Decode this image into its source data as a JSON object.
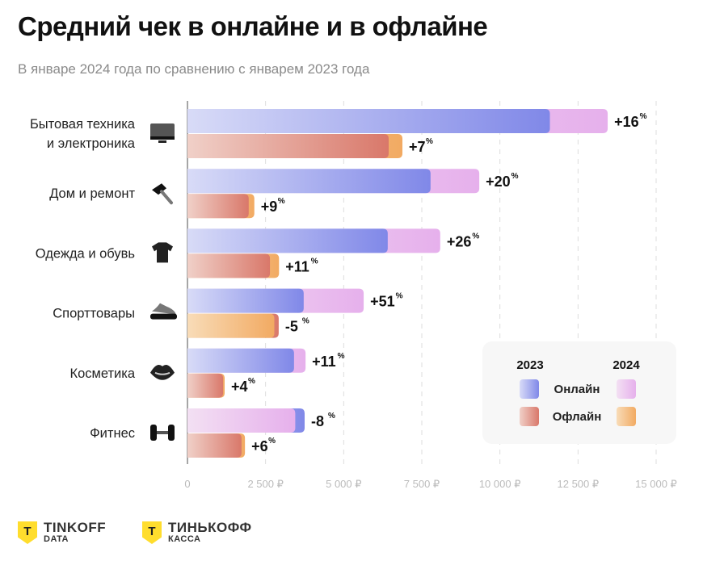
{
  "title": "Средний чек в онлайне и в офлайне",
  "subtitle": "В январе 2024 года по сравнению с январем 2023 года",
  "chart_data": {
    "type": "bar",
    "orientation": "horizontal",
    "categories": [
      "Бытовая техника и электроника",
      "Дом и ремонт",
      "Одежда и обувь",
      "Спорттовары",
      "Косметика",
      "Фитнес"
    ],
    "category_lines": [
      [
        "Бытовая техника",
        "и электроника"
      ],
      [
        "Дом и ремонт"
      ],
      [
        "Одежда и обувь"
      ],
      [
        "Спорттовары"
      ],
      [
        "Косметика"
      ],
      [
        "Фитнес"
      ]
    ],
    "category_icons": [
      "monitor-icon",
      "hammer-icon",
      "tshirt-icon",
      "sneaker-icon",
      "lips-icon",
      "dumbbell-icon"
    ],
    "series": [
      {
        "channel": "Онлайн",
        "year": "2023",
        "color": "#8088e8",
        "values": [
          11600,
          7780,
          6410,
          3720,
          3410,
          3750
        ]
      },
      {
        "channel": "Онлайн",
        "year": "2024",
        "color": "#e8b4ee",
        "values": [
          13450,
          9340,
          8090,
          5640,
          3780,
          3450
        ]
      },
      {
        "channel": "Офлайн",
        "year": "2023",
        "color": "#d9786a",
        "values": [
          6440,
          1960,
          2640,
          2920,
          1140,
          1730
        ]
      },
      {
        "channel": "Офлайн",
        "year": "2024",
        "color": "#f2aa62",
        "values": [
          6880,
          2140,
          2930,
          2780,
          1190,
          1840
        ]
      }
    ],
    "change_labels": {
      "online": [
        "+16",
        "+20",
        "+26",
        "+51",
        "+11",
        "-8"
      ],
      "offline": [
        "+7",
        "+9",
        "+11",
        "-5",
        "+4",
        "+6"
      ],
      "unit": "%"
    },
    "xlim": [
      0,
      15000
    ],
    "xticks": [
      0,
      2500,
      5000,
      7500,
      10000,
      12500,
      15000
    ],
    "xtick_labels": [
      "0",
      "2 500 ₽",
      "5 000 ₽",
      "7 500 ₽",
      "10 000 ₽",
      "12 500 ₽",
      "15 000 ₽"
    ],
    "grid": "vertical dashed",
    "legend": {
      "placement": "bottom-right",
      "years": [
        "2023",
        "2024"
      ],
      "rows": [
        "Онлайн",
        "Офлайн"
      ]
    }
  },
  "footer": {
    "logo1": {
      "mark": "Т",
      "line1": "TINKOFF",
      "line2": "DATA"
    },
    "logo2": {
      "mark": "Т",
      "line1": "ТИНЬКОФФ",
      "line2": "КАССА"
    }
  }
}
